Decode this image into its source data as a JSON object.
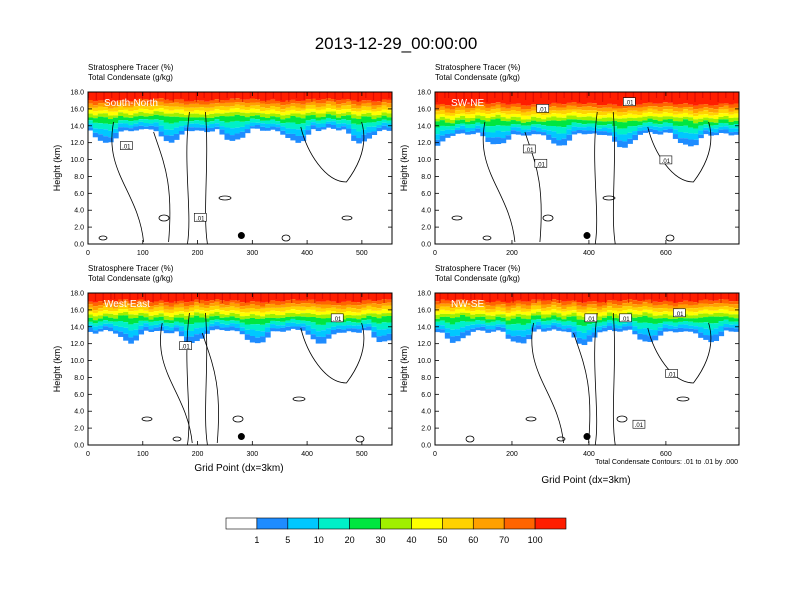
{
  "main_title": "2013-12-29_00:00:00",
  "panel_header": {
    "line1": "Stratosphere Tracer   (%)",
    "line2": "Total Condensate   (g/kg)"
  },
  "xaxis_label": "Grid Point (dx=3km)",
  "contour_note": "Total Condensate Contours: .01 to .01 by .000",
  "colorbar": {
    "colors": [
      "#ffffff",
      "#1e8cff",
      "#00c8ff",
      "#00f0c8",
      "#00e640",
      "#a0f000",
      "#ffff00",
      "#ffd200",
      "#ffa000",
      "#ff6400",
      "#ff1e00"
    ],
    "labels": [
      "1",
      "5",
      "10",
      "20",
      "30",
      "40",
      "50",
      "60",
      "70",
      "100"
    ]
  },
  "chart_data": [
    {
      "type": "heatmap",
      "panel": "South-North",
      "ylabel": "Height (km)",
      "xlim": [
        0,
        555
      ],
      "ylim": [
        0,
        18
      ],
      "xticks": [
        0,
        100,
        200,
        300,
        400,
        500
      ],
      "yticks": [
        "0.0",
        "2.0",
        "4.0",
        "6.0",
        "8.0",
        "10.0",
        "12.0",
        "14.0",
        "16.0",
        "18.0"
      ],
      "contour_labels": [
        {
          "x": 70,
          "y": 11.6,
          "text": ".01"
        },
        {
          "x": 205,
          "y": 3.1,
          "text": ".01"
        }
      ],
      "marker": {
        "x": 280,
        "y": 1.0
      }
    },
    {
      "type": "heatmap",
      "panel": "SW-NE",
      "ylabel": "Height (km)",
      "xlim": [
        0,
        790
      ],
      "ylim": [
        0,
        18
      ],
      "xticks": [
        0,
        200,
        400,
        600
      ],
      "yticks": [
        "0.0",
        "2.0",
        "4.0",
        "6.0",
        "8.0",
        "10.0",
        "12.0",
        "14.0",
        "16.0",
        "18.0"
      ],
      "contour_labels": [
        {
          "x": 245,
          "y": 11.2,
          "text": ".01"
        },
        {
          "x": 275,
          "y": 9.5,
          "text": ".01"
        },
        {
          "x": 280,
          "y": 16.0,
          "text": ".01"
        },
        {
          "x": 505,
          "y": 16.8,
          "text": ".01"
        },
        {
          "x": 600,
          "y": 9.9,
          "text": ".01"
        }
      ],
      "marker": {
        "x": 395,
        "y": 1.0
      }
    },
    {
      "type": "heatmap",
      "panel": "West-East",
      "ylabel": "Height (km)",
      "xlim": [
        0,
        555
      ],
      "ylim": [
        0,
        18
      ],
      "xticks": [
        0,
        100,
        200,
        300,
        400,
        500
      ],
      "yticks": [
        "0.0",
        "2.0",
        "4.0",
        "6.0",
        "8.0",
        "10.0",
        "12.0",
        "14.0",
        "16.0",
        "18.0"
      ],
      "contour_labels": [
        {
          "x": 178,
          "y": 11.7,
          "text": ".01"
        },
        {
          "x": 455,
          "y": 15.0,
          "text": ".01"
        }
      ],
      "marker": {
        "x": 280,
        "y": 1.0
      }
    },
    {
      "type": "heatmap",
      "panel": "NW-SE",
      "ylabel": "Height (km)",
      "xlim": [
        0,
        790
      ],
      "ylim": [
        0,
        18
      ],
      "xticks": [
        0,
        200,
        400,
        600
      ],
      "yticks": [
        "0.0",
        "2.0",
        "4.0",
        "6.0",
        "8.0",
        "10.0",
        "12.0",
        "14.0",
        "16.0",
        "18.0"
      ],
      "contour_labels": [
        {
          "x": 405,
          "y": 15.0,
          "text": ".01"
        },
        {
          "x": 495,
          "y": 15.0,
          "text": ".01"
        },
        {
          "x": 530,
          "y": 2.4,
          "text": ".01"
        },
        {
          "x": 615,
          "y": 8.4,
          "text": ".01"
        },
        {
          "x": 635,
          "y": 15.6,
          "text": ".01"
        }
      ],
      "marker": {
        "x": 395,
        "y": 1.0
      }
    }
  ]
}
